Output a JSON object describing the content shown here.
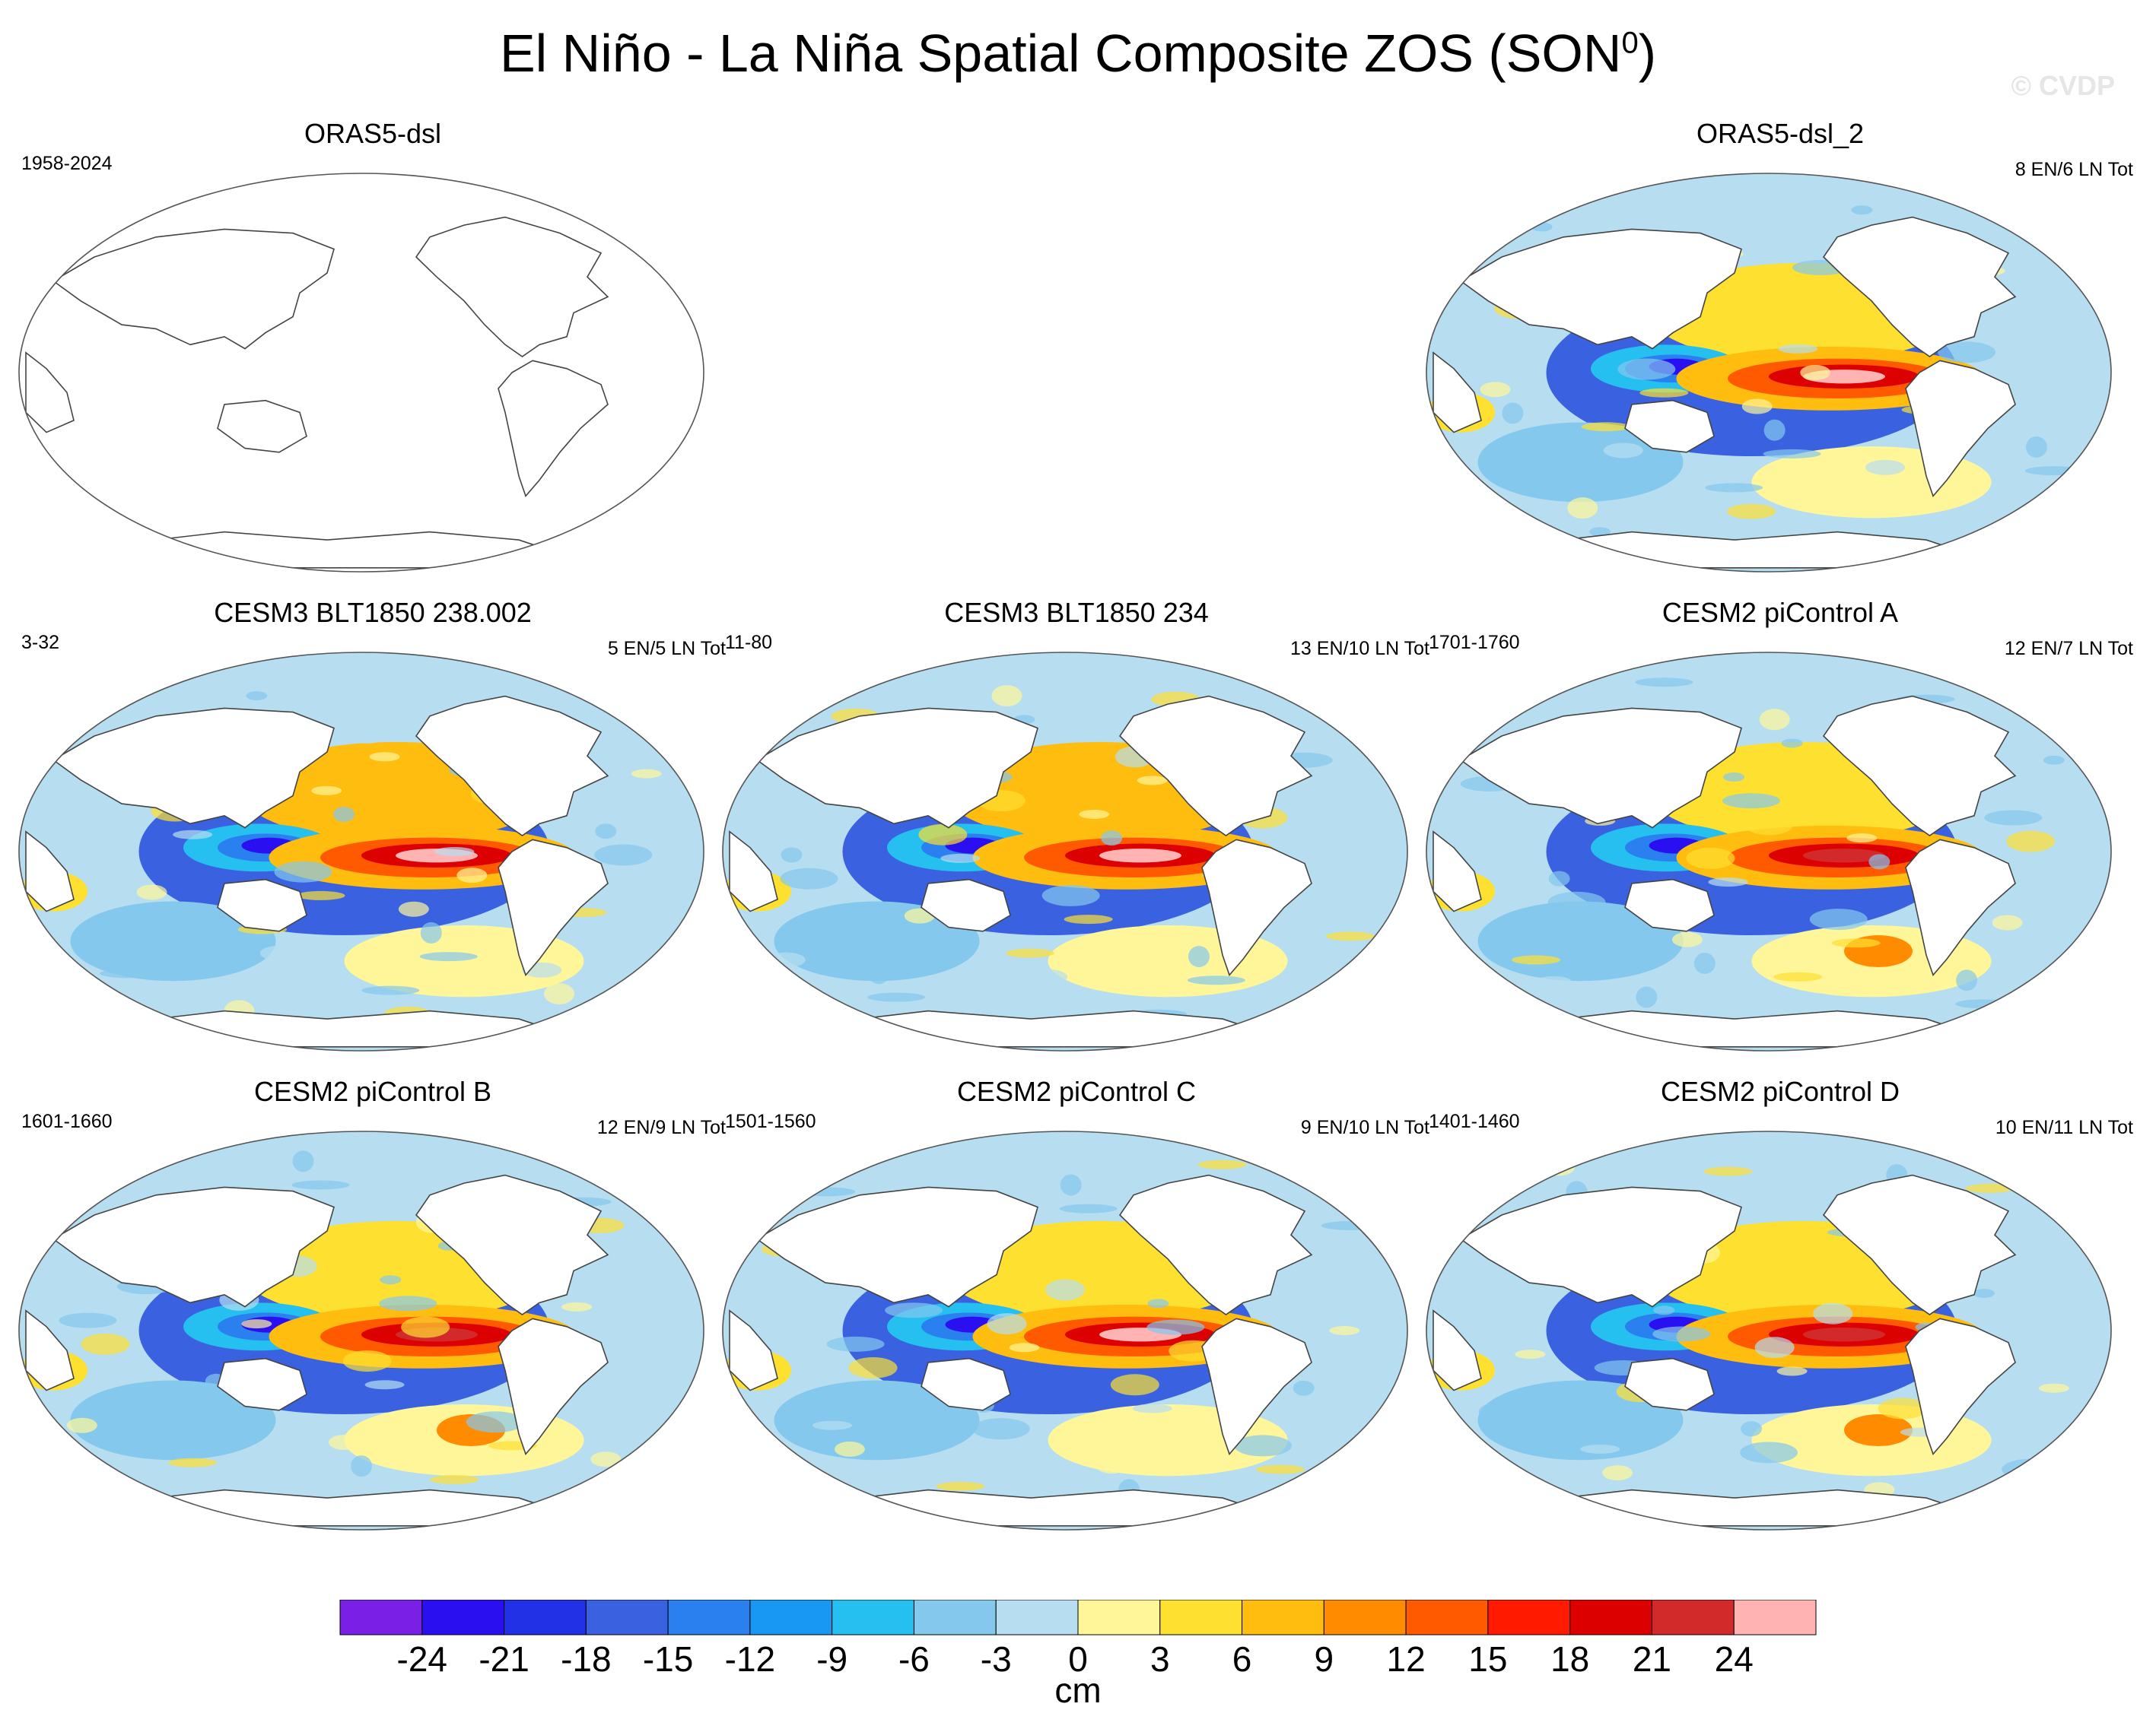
{
  "title_main": "El Niño - La Niña Spatial Composite ZOS (SON",
  "title_sup": "0",
  "title_close": ")",
  "watermark": "© CVDP",
  "panels": [
    {
      "name": "ORAS5-dsl",
      "left": "1958-2024",
      "right": "",
      "filled": false
    },
    {
      "name": "ORAS5-dsl_2",
      "left": "",
      "right": "8 EN/6 LN Tot",
      "filled": true,
      "variant": 0
    },
    {
      "name": "CESM3 BLT1850 238.002",
      "left": "3-32",
      "right": "5 EN/5 LN Tot",
      "filled": true,
      "variant": 1
    },
    {
      "name": "CESM3 BLT1850 234",
      "left": "11-80",
      "right": "13 EN/10 LN Tot",
      "filled": true,
      "variant": 2
    },
    {
      "name": "CESM2 piControl A",
      "left": "1701-1760",
      "right": "12 EN/7 LN Tot",
      "filled": true,
      "variant": 3
    },
    {
      "name": "CESM2 piControl B",
      "left": "1601-1660",
      "right": "12 EN/9 LN Tot",
      "filled": true,
      "variant": 4
    },
    {
      "name": "CESM2 piControl C",
      "left": "1501-1560",
      "right": "9 EN/10 LN Tot",
      "filled": true,
      "variant": 5
    },
    {
      "name": "CESM2 piControl D",
      "left": "1401-1460",
      "right": "10 EN/11 LN Tot",
      "filled": true,
      "variant": 6
    }
  ],
  "colorbar": {
    "labels": [
      "-24",
      "-21",
      "-18",
      "-15",
      "-12",
      "-9",
      "-6",
      "-3",
      "0",
      "3",
      "6",
      "9",
      "12",
      "15",
      "18",
      "21",
      "24"
    ],
    "colors": [
      "#7a1fe6",
      "#2a10f0",
      "#2230e6",
      "#3a62e0",
      "#2a80ee",
      "#1898f2",
      "#25bff0",
      "#85c8ee",
      "#b7def0",
      "#fff69a",
      "#fde030",
      "#ffbd10",
      "#ff8c00",
      "#ff5a00",
      "#ff1a00",
      "#dc0000",
      "#d22a2a",
      "#ffb3b3"
    ],
    "units": "cm"
  }
}
